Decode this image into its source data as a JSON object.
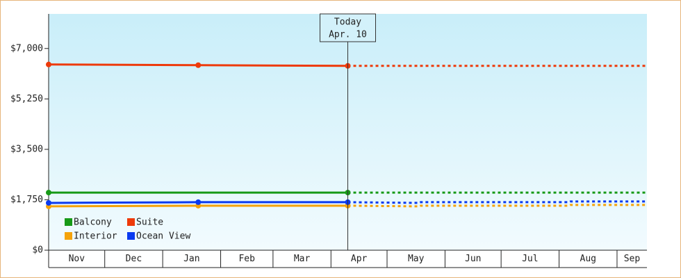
{
  "chart_data": {
    "type": "line",
    "xlim": [
      0,
      320
    ],
    "ylim": [
      0,
      8200
    ],
    "yticks": [
      {
        "value": 0,
        "label": "$0"
      },
      {
        "value": 1750,
        "label": "$1,750"
      },
      {
        "value": 3500,
        "label": "$3,500"
      },
      {
        "value": 5250,
        "label": "$5,250"
      },
      {
        "value": 7000,
        "label": "$7,000"
      }
    ],
    "xticks": [
      0,
      30,
      61,
      92,
      120,
      151,
      181,
      212,
      242,
      273,
      304
    ],
    "month_labels": [
      "Nov",
      "Dec",
      "Jan",
      "Feb",
      "Mar",
      "Apr",
      "May",
      "Jun",
      "Jul",
      "Aug",
      "Sep"
    ],
    "today": {
      "x": 160,
      "label": [
        "Today",
        "Apr. 10"
      ]
    },
    "series": [
      {
        "name": "Balcony",
        "color": "#179a17",
        "x": [
          0,
          160
        ],
        "values": [
          2000,
          2000
        ],
        "forecast": {
          "x": [
            160,
            320
          ],
          "values": [
            2000,
            2000
          ]
        }
      },
      {
        "name": "Suite",
        "color": "#ee3a0a",
        "x": [
          0,
          80,
          160
        ],
        "values": [
          6445,
          6421,
          6397
        ],
        "forecast": {
          "x": [
            160,
            320
          ],
          "values": [
            6397,
            6397
          ]
        }
      },
      {
        "name": "Interior",
        "color": "#f5a30a",
        "x": [
          0,
          80,
          160
        ],
        "values": [
          1521,
          1545,
          1545
        ],
        "forecast": {
          "x": [
            160,
            198,
            199,
            278,
            279,
            320
          ],
          "values": [
            1545,
            1521,
            1545,
            1545,
            1570,
            1570
          ]
        }
      },
      {
        "name": "Ocean View",
        "color": "#0a3af0",
        "x": [
          0,
          80,
          160
        ],
        "values": [
          1641,
          1666,
          1666
        ],
        "forecast": {
          "x": [
            160,
            198,
            199,
            278,
            279,
            320
          ],
          "values": [
            1666,
            1641,
            1666,
            1666,
            1690,
            1690
          ]
        }
      }
    ]
  }
}
